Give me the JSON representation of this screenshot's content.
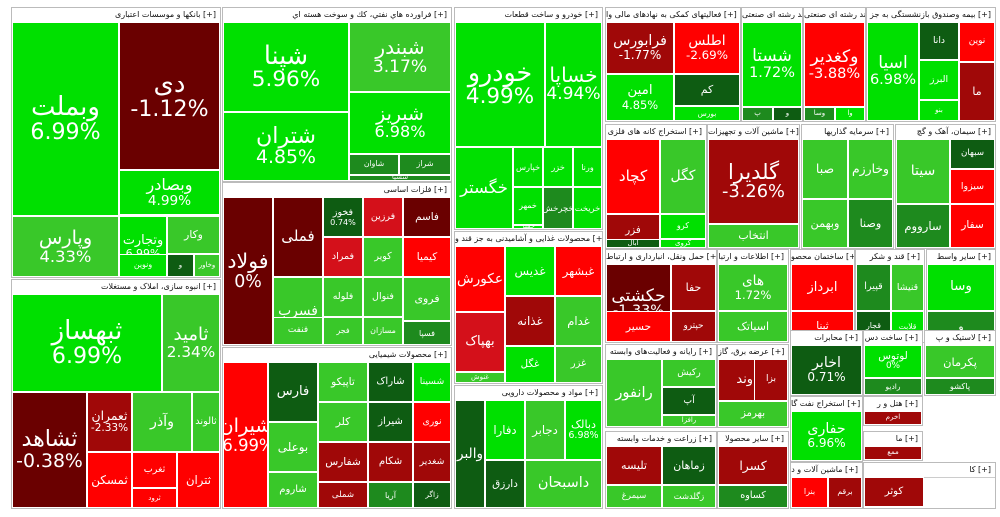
{
  "chart_data": {
    "type": "heatmap",
    "colors": {
      "pos_strong": "#00e000",
      "pos_mid": "#39c829",
      "pos_dark": "#1e8a1e",
      "pos_deep": "#0e5c12",
      "neg_strong": "#ff0000",
      "neg_mid": "#d4101a",
      "neg_dark": "#a00808",
      "neg_deep": "#6a0000"
    },
    "sectors": [
      {
        "title": "بانکها و موسسات اعتباری [+]",
        "tiles": [
          {
            "name": "وبملت",
            "pct": "6.99%",
            "tone": "pos_strong"
          },
          {
            "name": "دی",
            "pct": "-1.12%",
            "tone": "neg_deep"
          },
          {
            "name": "وبصادر",
            "pct": "4.99%",
            "tone": "pos_strong"
          },
          {
            "name": "وپارس",
            "pct": "4.33%",
            "tone": "pos_mid"
          },
          {
            "name": "وتجارت",
            "pct": "6.99%",
            "tone": "pos_strong"
          },
          {
            "name": "وکار",
            "tone": "pos_mid"
          },
          {
            "name": "و",
            "tone": "pos_deep"
          },
          {
            "name": "وخاور",
            "tone": "pos_mid"
          },
          {
            "name": "ونوین",
            "tone": "pos_strong"
          }
        ]
      },
      {
        "title": "فراورده هاي نفتي، كك و سوخت هسته اي [+]",
        "tiles": [
          {
            "name": "شپنا",
            "pct": "5.96%",
            "tone": "pos_strong"
          },
          {
            "name": "شبندر",
            "pct": "3.17%",
            "tone": "pos_mid"
          },
          {
            "name": "شتران",
            "pct": "4.85%",
            "tone": "pos_strong"
          },
          {
            "name": "شبریز",
            "pct": "6.98%",
            "tone": "pos_strong"
          },
          {
            "name": "شاوان",
            "tone": "pos_dark"
          },
          {
            "name": "شراز",
            "tone": "pos_dark"
          },
          {
            "name": "شسپا",
            "tone": "pos_dark"
          }
        ]
      },
      {
        "title": "خودرو و ساخت قطعات [+]",
        "tiles": [
          {
            "name": "خودرو",
            "pct": "4.99%",
            "tone": "pos_strong"
          },
          {
            "name": "خساپا",
            "pct": "4.94%",
            "tone": "pos_strong"
          },
          {
            "name": "خگستر",
            "tone": "pos_strong"
          },
          {
            "name": "خپارس",
            "tone": "pos_strong"
          },
          {
            "name": "خزر",
            "tone": "pos_strong"
          },
          {
            "name": "ورنا",
            "tone": "pos_strong"
          },
          {
            "name": "خمهر",
            "tone": "pos_strong"
          },
          {
            "name": "خفنر",
            "tone": "pos_strong"
          },
          {
            "name": "خریخت",
            "tone": "pos_strong"
          },
          {
            "name": "خچرخش",
            "tone": "pos_dark"
          },
          {
            "name": "خفولا",
            "tone": "pos_strong"
          }
        ]
      },
      {
        "title": "فعالیتهای کمکی به نهادهای مالی وا [+]",
        "tiles": [
          {
            "name": "فرابورس",
            "pct": "-1.77%",
            "tone": "neg_dark"
          },
          {
            "name": "اطلس",
            "pct": "-2.69%",
            "tone": "neg_strong"
          },
          {
            "name": "امین",
            "pct": "4.85%",
            "tone": "pos_strong"
          },
          {
            "name": "کم",
            "tone": "pos_deep"
          },
          {
            "name": "بورس",
            "tone": "pos_strong"
          }
        ]
      },
      {
        "title": "شرکتهای چند رشته ای صنعتی [+]",
        "tiles": [
          {
            "name": "شستا",
            "pct": "1.72%",
            "tone": "pos_strong"
          },
          {
            "name": "پ",
            "tone": "pos_dark"
          },
          {
            "name": "و",
            "tone": "pos_deep"
          }
        ]
      },
      {
        "title": "شرکتهای چند رشته ای صنعتی [+]",
        "tiles": [
          {
            "name": "وکغدیر",
            "pct": "-3.88%",
            "tone": "neg_strong"
          },
          {
            "name": "وسا",
            "tone": "pos_dark"
          },
          {
            "name": "وا",
            "tone": "pos_strong"
          }
        ]
      },
      {
        "title": "بیمه وصندوق بازنشستگی به جز [+]",
        "tiles": [
          {
            "name": "اسیا",
            "pct": "6.98%",
            "tone": "pos_strong"
          },
          {
            "name": "دانا",
            "tone": "pos_deep"
          },
          {
            "name": "البرز",
            "tone": "pos_strong"
          },
          {
            "name": "نوین",
            "tone": "neg_strong"
          },
          {
            "name": "بنو",
            "tone": "pos_strong"
          },
          {
            "name": "ما",
            "tone": "neg_dark"
          }
        ]
      },
      {
        "title": "استخراج کانه های فلزی [+]",
        "tiles": [
          {
            "name": "کچاد",
            "tone": "neg_strong"
          },
          {
            "name": "کگل",
            "tone": "pos_mid"
          },
          {
            "name": "فزر",
            "tone": "neg_dark"
          },
          {
            "name": "کرو",
            "tone": "pos_strong"
          },
          {
            "name": "ابال",
            "tone": "pos_deep"
          },
          {
            "name": "کروی",
            "tone": "pos_strong"
          }
        ]
      },
      {
        "title": "ماشین آلات و تجهیزات [+]",
        "tiles": [
          {
            "name": "گلدیرا",
            "pct": "-3.26%",
            "tone": "neg_dark"
          },
          {
            "name": "انتخاب",
            "tone": "pos_mid"
          }
        ]
      },
      {
        "title": "سرمایه گذاریها [+]",
        "tiles": [
          {
            "name": "صبا",
            "tone": "pos_mid"
          },
          {
            "name": "وخارزم",
            "tone": "pos_mid"
          },
          {
            "name": "وبهمن",
            "tone": "pos_mid"
          },
          {
            "name": "وصنا",
            "tone": "pos_dark"
          }
        ]
      },
      {
        "title": "سیمان، آهک و گچ [+]",
        "tiles": [
          {
            "name": "سیتا",
            "tone": "pos_mid"
          },
          {
            "name": "سبهان",
            "tone": "pos_deep"
          },
          {
            "name": "سارووم",
            "tone": "pos_dark"
          },
          {
            "name": "سیزوا",
            "tone": "neg_strong"
          },
          {
            "name": "سفار",
            "tone": "neg_strong"
          }
        ]
      },
      {
        "title": "فلزات اساسی [+]",
        "tiles": [
          {
            "name": "فولاد",
            "pct": "0%",
            "tone": "neg_deep"
          },
          {
            "name": "فملی",
            "tone": "neg_deep"
          },
          {
            "name": "فخوز",
            "pct": "0.74%",
            "tone": "pos_deep"
          },
          {
            "name": "فرزین",
            "tone": "neg_mid"
          },
          {
            "name": "فاسم",
            "tone": "neg_deep"
          },
          {
            "name": "فمراد",
            "tone": "neg_mid"
          },
          {
            "name": "کویر",
            "tone": "pos_mid"
          },
          {
            "name": "کیمیا",
            "tone": "neg_strong"
          },
          {
            "name": "فلوله",
            "tone": "pos_mid"
          },
          {
            "name": "فنوال",
            "tone": "pos_mid"
          },
          {
            "name": "فسرب",
            "tone": "pos_mid"
          },
          {
            "name": "فجر",
            "tone": "pos_mid"
          },
          {
            "name": "مسازان",
            "tone": "pos_mid"
          },
          {
            "name": "فروی",
            "tone": "pos_mid"
          },
          {
            "name": "فسپا",
            "tone": "pos_dark"
          },
          {
            "name": "فنفت",
            "tone": "pos_mid"
          }
        ]
      },
      {
        "title": "محصولات غذایی و آشامیدنی به جز قند و [+]",
        "tiles": [
          {
            "name": "عکورش",
            "tone": "neg_strong"
          },
          {
            "name": "غدیس",
            "tone": "pos_strong"
          },
          {
            "name": "غبشهر",
            "tone": "neg_strong"
          },
          {
            "name": "غدام",
            "tone": "pos_mid"
          },
          {
            "name": "غذانه",
            "tone": "neg_dark"
          },
          {
            "name": "غگل",
            "tone": "pos_strong"
          },
          {
            "name": "بهپاک",
            "tone": "neg_mid"
          },
          {
            "name": "غنوش",
            "tone": "pos_mid"
          },
          {
            "name": "غزر",
            "tone": "pos_mid"
          },
          {
            "name": "غویتا",
            "tone": "pos_mid"
          }
        ]
      },
      {
        "title": "انبوه سازی، املاک و مستغلات [+]",
        "tiles": [
          {
            "name": "ثبهساز",
            "pct": "6.99%",
            "tone": "pos_strong"
          },
          {
            "name": "ثامید",
            "pct": "2.34%",
            "tone": "pos_mid"
          },
          {
            "name": "ثشاهد",
            "pct": "-0.38%",
            "tone": "neg_deep"
          },
          {
            "name": "ثعمران",
            "pct": "-2.33%",
            "tone": "neg_dark"
          },
          {
            "name": "وآذر",
            "tone": "pos_mid"
          },
          {
            "name": "ثالوند",
            "tone": "pos_mid"
          },
          {
            "name": "ثمسکن",
            "tone": "neg_strong"
          },
          {
            "name": "ثغرب",
            "tone": "neg_strong"
          },
          {
            "name": "ثفارس",
            "pct": "-4.98%",
            "tone": "neg_strong"
          },
          {
            "name": "ثتران",
            "tone": "neg_strong"
          },
          {
            "name": "ثرود",
            "tone": "neg_strong"
          }
        ]
      },
      {
        "title": "محصولات شیمیایی [+]",
        "tiles": [
          {
            "name": "شیران",
            "pct": "-6.99%",
            "tone": "neg_strong"
          },
          {
            "name": "فارس",
            "tone": "pos_deep"
          },
          {
            "name": "بوعلی",
            "tone": "pos_mid"
          },
          {
            "name": "شاروم",
            "tone": "pos_mid"
          },
          {
            "name": "تاپیکو",
            "tone": "pos_mid"
          },
          {
            "name": "شاراک",
            "tone": "pos_deep"
          },
          {
            "name": "شسینا",
            "tone": "pos_strong"
          },
          {
            "name": "نوری",
            "tone": "neg_strong"
          },
          {
            "name": "کلر",
            "tone": "pos_mid"
          },
          {
            "name": "شیراز",
            "tone": "pos_deep"
          },
          {
            "name": "شکام",
            "tone": "neg_dark"
          },
          {
            "name": "شفارس",
            "tone": "neg_dark"
          },
          {
            "name": "شملی",
            "tone": "neg_dark"
          },
          {
            "name": "آریا",
            "tone": "pos_dark"
          },
          {
            "name": "شغدیر",
            "tone": "neg_dark"
          },
          {
            "name": "زاگر",
            "tone": "pos_deep"
          },
          {
            "name": "شفن",
            "tone": "neg_strong"
          },
          {
            "name": "شپلی",
            "tone": "pos_mid"
          }
        ]
      },
      {
        "title": "مواد و محصولات دارویی [+]",
        "tiles": [
          {
            "name": "دفارا",
            "tone": "pos_strong"
          },
          {
            "name": "دارزق",
            "tone": "pos_deep"
          },
          {
            "name": "داسبحان",
            "tone": "pos_mid"
          },
          {
            "name": "والبر",
            "tone": "pos_deep"
          },
          {
            "name": "دجابر",
            "tone": "pos_mid"
          },
          {
            "name": "دپسل",
            "tone": "pos_dark"
          },
          {
            "name": "دبالک",
            "pct": "6.98%",
            "tone": "pos_strong"
          }
        ]
      },
      {
        "title": "حمل ونقل، انبارداری و ارتباط [+]",
        "tiles": [
          {
            "name": "حکشتی",
            "pct": "-1.33%",
            "tone": "neg_deep"
          },
          {
            "name": "حسیر",
            "tone": "neg_strong"
          },
          {
            "name": "حپترو",
            "tone": "neg_dark"
          },
          {
            "name": "حفا",
            "tone": "neg_dark"
          }
        ]
      },
      {
        "title": "اطلاعات و ارتبا [+]",
        "tiles": [
          {
            "name": "های",
            "pct": "1.72%",
            "tone": "pos_mid"
          },
          {
            "name": "اسیاتک",
            "tone": "pos_mid"
          }
        ]
      },
      {
        "title": "ساختمان محصو [+]",
        "tiles": [
          {
            "name": "ابرداز",
            "tone": "neg_strong"
          },
          {
            "name": "ثبنا",
            "tone": "neg_strong"
          }
        ]
      },
      {
        "title": "قند و شکر [+]",
        "tiles": [
          {
            "name": "قپیرا",
            "tone": "pos_dark"
          },
          {
            "name": "قنیشا",
            "tone": "pos_mid"
          },
          {
            "name": "قجار",
            "tone": "pos_deep"
          },
          {
            "name": "قلابت",
            "tone": "pos_strong"
          }
        ]
      },
      {
        "title": "سایر واسط [+]",
        "tiles": [
          {
            "name": "وسا",
            "tone": "pos_strong"
          },
          {
            "name": "و",
            "tone": "pos_dark"
          }
        ]
      },
      {
        "title": "رایانه و فعالیت‌های وابسته [+]",
        "tiles": [
          {
            "name": "رانفور",
            "tone": "pos_mid"
          },
          {
            "name": "رکیش",
            "tone": "pos_mid"
          },
          {
            "name": "آپ",
            "tone": "pos_deep"
          },
          {
            "name": "رافزا",
            "tone": "pos_mid"
          },
          {
            "name": "رتاپ",
            "tone": "pos_mid"
          }
        ]
      },
      {
        "title": "عرضه برق، گاز [+]",
        "tiles": [
          {
            "name": "دماوند",
            "tone": "neg_dark"
          },
          {
            "name": "بهرمز",
            "tone": "pos_mid"
          },
          {
            "name": "بزا",
            "tone": "neg_dark"
          }
        ]
      },
      {
        "title": "محابرات [+]",
        "tiles": [
          {
            "name": "اخابر",
            "pct": "0.71%",
            "tone": "pos_deep"
          },
          {
            "name": "همراه",
            "tone": "pos_strong"
          }
        ]
      },
      {
        "title": "ساخت دس [+]",
        "tiles": [
          {
            "name": "لوتوس",
            "pct": "0%",
            "tone": "pos_strong"
          },
          {
            "name": "رادیو",
            "tone": "pos_dark"
          }
        ]
      },
      {
        "title": "استخراج نفت گا [+]",
        "tiles": [
          {
            "name": "حفاری",
            "pct": "6.96%",
            "tone": "pos_strong"
          }
        ]
      },
      {
        "title": "زراعت و خدمات وابسته [+]",
        "tiles": [
          {
            "name": "تلیسه",
            "tone": "neg_dark"
          },
          {
            "name": "زماهان",
            "tone": "pos_deep"
          },
          {
            "name": "سیمرغ",
            "tone": "pos_mid"
          },
          {
            "name": "زگلدشت",
            "tone": "pos_mid"
          },
          {
            "name": "زقیام",
            "tone": "pos_dark"
          },
          {
            "name": "سپید",
            "tone": "pos_dark"
          }
        ]
      },
      {
        "title": "سایر محصولا [+]",
        "tiles": [
          {
            "name": "کسرا",
            "tone": "neg_dark"
          },
          {
            "name": "کساوه",
            "tone": "pos_dark"
          }
        ]
      },
      {
        "title": "ماشین آلات و د [+]",
        "tiles": [
          {
            "name": "بنرا",
            "tone": "neg_strong"
          },
          {
            "name": "برقم",
            "tone": "neg_dark"
          }
        ]
      },
      {
        "title": "لاستیک و پ [+]",
        "tiles": [
          {
            "name": "پکرمان",
            "tone": "pos_mid"
          },
          {
            "name": "پاکشو",
            "tone": "pos_dark"
          }
        ]
      },
      {
        "title": "هتل و ر [+]",
        "tiles": [
          {
            "name": "اخرم",
            "tone": "neg_dark"
          },
          {
            "name": "انقش",
            "tone": "neg_strong"
          }
        ]
      },
      {
        "title": "ما [+]",
        "tiles": [
          {
            "name": "ممع",
            "tone": "neg_dark"
          }
        ]
      },
      {
        "title": "کا [+]",
        "tiles": [
          {
            "name": "کوثر",
            "tone": "neg_dark"
          }
        ]
      },
      {
        "title": "ما [+]",
        "tiles": [
          {
            "name": "حخزر",
            "tone": "pos_mid"
          },
          {
            "name": "کماسه",
            "tone": "pos_mid"
          },
          {
            "name": "مادیرا",
            "tone": "pos_dark"
          },
          {
            "name": "چخزر",
            "tone": "pos_mid"
          },
          {
            "name": "سا",
            "tone": "neg_strong"
          }
        ]
      }
    ]
  }
}
